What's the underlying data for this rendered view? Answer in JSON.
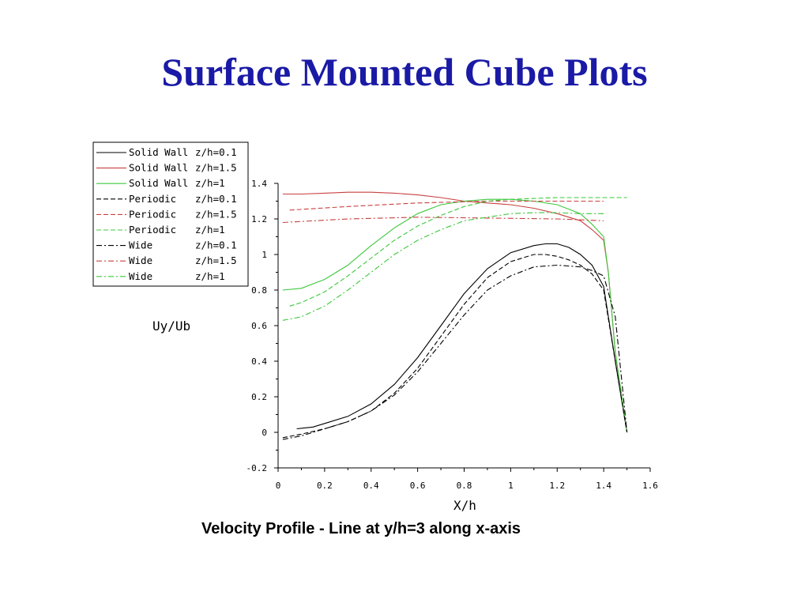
{
  "slide": {
    "title": "Surface Mounted Cube Plots",
    "caption": "Velocity Profile - Line at y/h=3 along x-axis"
  },
  "chart_data": {
    "type": "line",
    "title": "",
    "xlabel": "X/h",
    "ylabel": "Uy/Ub",
    "xlim": [
      0,
      1.6
    ],
    "ylim": [
      -0.2,
      1.4
    ],
    "xticks": [
      "0",
      "0.2",
      "0.4",
      "0.6",
      "0.8",
      "1",
      "1.2",
      "1.4",
      "1.6"
    ],
    "yticks": [
      "-0.2",
      "0",
      "0.2",
      "0.4",
      "0.6",
      "0.8",
      "1",
      "1.2",
      "1.4"
    ],
    "grid": false,
    "legend_position": "top-left-outside",
    "series": [
      {
        "name": "Solid Wall z/h=0.1",
        "legend_name": "Solid Wall",
        "legend_z": "z/h=0.1",
        "color": "#000000",
        "dash": "solid",
        "x": [
          0.08,
          0.15,
          0.2,
          0.3,
          0.4,
          0.5,
          0.6,
          0.7,
          0.8,
          0.9,
          1.0,
          1.1,
          1.15,
          1.2,
          1.25,
          1.3,
          1.35,
          1.4,
          1.45,
          1.5
        ],
        "y": [
          0.02,
          0.03,
          0.05,
          0.09,
          0.16,
          0.27,
          0.42,
          0.6,
          0.78,
          0.92,
          1.01,
          1.05,
          1.06,
          1.06,
          1.04,
          1.0,
          0.94,
          0.82,
          0.4,
          0.0
        ]
      },
      {
        "name": "Solid Wall z/h=1.5",
        "legend_name": "Solid Wall",
        "legend_z": "z/h=1.5",
        "color": "#c84040",
        "dash": "solid",
        "x": [
          0.02,
          0.1,
          0.2,
          0.3,
          0.4,
          0.5,
          0.6,
          0.7,
          0.8,
          0.9,
          1.0,
          1.1,
          1.2,
          1.3,
          1.35,
          1.4,
          1.42,
          1.45,
          1.5
        ],
        "y": [
          1.34,
          1.34,
          1.345,
          1.35,
          1.35,
          1.345,
          1.335,
          1.32,
          1.3,
          1.29,
          1.28,
          1.26,
          1.23,
          1.19,
          1.14,
          1.08,
          0.9,
          0.45,
          0.0
        ]
      },
      {
        "name": "Solid Wall z/h=1",
        "legend_name": "Solid Wall",
        "legend_z": "z/h=1",
        "color": "#3cc83c",
        "dash": "solid",
        "x": [
          0.02,
          0.1,
          0.2,
          0.3,
          0.4,
          0.5,
          0.6,
          0.7,
          0.8,
          0.9,
          1.0,
          1.1,
          1.2,
          1.3,
          1.35,
          1.4,
          1.42,
          1.45,
          1.5
        ],
        "y": [
          0.8,
          0.81,
          0.86,
          0.94,
          1.05,
          1.15,
          1.23,
          1.28,
          1.3,
          1.31,
          1.31,
          1.3,
          1.28,
          1.23,
          1.17,
          1.1,
          0.9,
          0.45,
          0.0
        ]
      },
      {
        "name": "Periodic z/h=0.1",
        "legend_name": "Periodic",
        "legend_z": "z/h=0.1",
        "color": "#000000",
        "dash": "dashed",
        "x": [
          0.02,
          0.1,
          0.2,
          0.3,
          0.4,
          0.5,
          0.6,
          0.7,
          0.8,
          0.9,
          1.0,
          1.1,
          1.15,
          1.2,
          1.25,
          1.3,
          1.35,
          1.4,
          1.45,
          1.5
        ],
        "y": [
          -0.03,
          -0.01,
          0.02,
          0.06,
          0.12,
          0.22,
          0.36,
          0.54,
          0.72,
          0.87,
          0.96,
          1.0,
          1.0,
          0.99,
          0.97,
          0.94,
          0.89,
          0.8,
          0.4,
          0.0
        ]
      },
      {
        "name": "Periodic z/h=1.5",
        "legend_name": "Periodic",
        "legend_z": "z/h=1.5",
        "color": "#c84040",
        "dash": "dashed",
        "x": [
          0.05,
          0.3,
          0.6,
          0.9,
          1.2,
          1.4
        ],
        "y": [
          1.25,
          1.27,
          1.29,
          1.3,
          1.3,
          1.3
        ]
      },
      {
        "name": "Periodic z/h=1",
        "legend_name": "Periodic",
        "legend_z": "z/h=1",
        "color": "#3cc83c",
        "dash": "dashed",
        "x": [
          0.05,
          0.1,
          0.2,
          0.3,
          0.4,
          0.5,
          0.6,
          0.7,
          0.8,
          0.9,
          1.0,
          1.1,
          1.2,
          1.3,
          1.4,
          1.5
        ],
        "y": [
          0.71,
          0.73,
          0.79,
          0.88,
          0.98,
          1.08,
          1.16,
          1.22,
          1.27,
          1.3,
          1.31,
          1.315,
          1.32,
          1.32,
          1.32,
          1.32
        ]
      },
      {
        "name": "Wide z/h=0.1",
        "legend_name": "Wide",
        "legend_z": "z/h=0.1",
        "color": "#000000",
        "dash": "dashdot",
        "x": [
          0.02,
          0.1,
          0.2,
          0.3,
          0.4,
          0.5,
          0.6,
          0.7,
          0.8,
          0.9,
          1.0,
          1.1,
          1.2,
          1.3,
          1.35,
          1.4,
          1.45,
          1.5
        ],
        "y": [
          -0.04,
          -0.02,
          0.02,
          0.06,
          0.12,
          0.21,
          0.34,
          0.5,
          0.66,
          0.8,
          0.88,
          0.93,
          0.94,
          0.93,
          0.91,
          0.88,
          0.65,
          0.0
        ]
      },
      {
        "name": "Wide z/h=1.5",
        "legend_name": "Wide",
        "legend_z": "z/h=1.5",
        "color": "#c84040",
        "dash": "dashdot",
        "x": [
          0.02,
          0.3,
          0.6,
          0.9,
          1.2,
          1.4
        ],
        "y": [
          1.18,
          1.2,
          1.21,
          1.205,
          1.2,
          1.19
        ]
      },
      {
        "name": "Wide z/h=1",
        "legend_name": "Wide",
        "legend_z": "z/h=1",
        "color": "#3cc83c",
        "dash": "dashdot",
        "x": [
          0.02,
          0.1,
          0.2,
          0.3,
          0.4,
          0.5,
          0.6,
          0.7,
          0.8,
          0.9,
          1.0,
          1.1,
          1.2,
          1.3,
          1.4
        ],
        "y": [
          0.63,
          0.65,
          0.71,
          0.8,
          0.9,
          1.0,
          1.08,
          1.14,
          1.19,
          1.21,
          1.23,
          1.235,
          1.235,
          1.23,
          1.23
        ]
      }
    ]
  }
}
